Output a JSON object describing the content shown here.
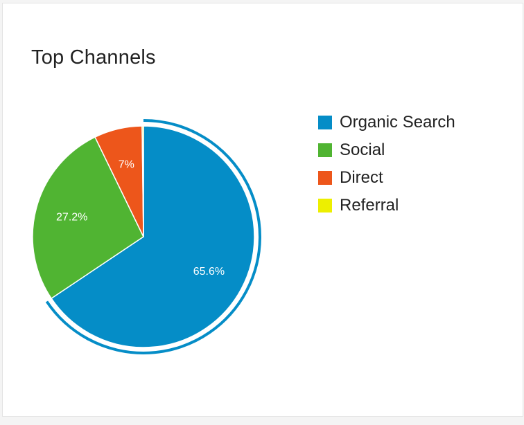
{
  "card": {
    "title": "Top Channels"
  },
  "chart_data": {
    "type": "pie",
    "title": "Top Channels",
    "categories": [
      "Organic Search",
      "Social",
      "Direct",
      "Referral"
    ],
    "values": [
      65.6,
      27.2,
      7,
      0.2
    ],
    "labels": [
      "65.6%",
      "27.2%",
      "7%",
      ""
    ],
    "colors": [
      "#058dc7",
      "#50b432",
      "#ed561b",
      "#edef00"
    ],
    "highlighted": "Organic Search",
    "legend_position": "right"
  },
  "legend": {
    "items": [
      {
        "label": "Organic Search",
        "color": "#058dc7"
      },
      {
        "label": "Social",
        "color": "#50b432"
      },
      {
        "label": "Direct",
        "color": "#ed561b"
      },
      {
        "label": "Referral",
        "color": "#edef00"
      }
    ]
  }
}
